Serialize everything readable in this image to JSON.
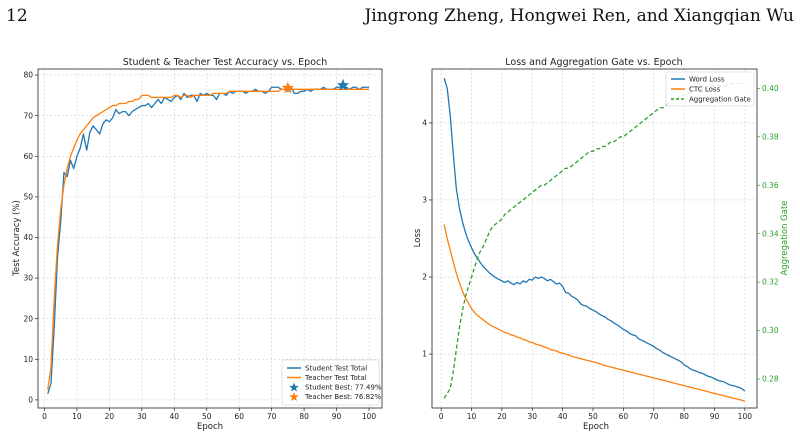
{
  "page": {
    "page_number": "12",
    "running_head": "Jingrong Zheng, Hongwei Ren, and Xiangqian Wu"
  },
  "chart_data": [
    {
      "type": "line",
      "title": "Student & Teacher Test Accuracy vs. Epoch",
      "xlabel": "Epoch",
      "ylabel": "Test Accuracy (%)",
      "xlim": [
        -2,
        104
      ],
      "ylim": [
        -2,
        81.5
      ],
      "xticks": [
        0,
        10,
        20,
        30,
        40,
        50,
        60,
        70,
        80,
        90,
        100
      ],
      "yticks": [
        0,
        10,
        20,
        30,
        40,
        50,
        60,
        70,
        80
      ],
      "grid": true,
      "legend_position": "lower-right",
      "series": [
        {
          "name": "Student Test Total",
          "color": "#1f77b4",
          "x": [
            1,
            2,
            3,
            4,
            5,
            6,
            7,
            8,
            9,
            10,
            11,
            12,
            13,
            14,
            15,
            16,
            17,
            18,
            19,
            20,
            21,
            22,
            23,
            24,
            25,
            26,
            27,
            28,
            29,
            30,
            31,
            32,
            33,
            34,
            35,
            36,
            37,
            38,
            39,
            40,
            41,
            42,
            43,
            44,
            45,
            46,
            47,
            48,
            49,
            50,
            51,
            52,
            53,
            54,
            55,
            56,
            57,
            58,
            59,
            60,
            61,
            62,
            63,
            64,
            65,
            66,
            67,
            68,
            69,
            70,
            71,
            72,
            73,
            74,
            75,
            76,
            77,
            78,
            79,
            80,
            81,
            82,
            83,
            84,
            85,
            86,
            87,
            88,
            89,
            90,
            91,
            92,
            93,
            94,
            95,
            96,
            97,
            98,
            99,
            100
          ],
          "y": [
            1.5,
            4,
            18,
            35,
            44,
            56,
            55,
            59,
            57,
            60,
            62,
            65.5,
            61.5,
            66,
            67.5,
            66.5,
            65.5,
            68,
            69,
            68.5,
            69.5,
            71.5,
            70.5,
            71,
            71,
            70,
            71,
            71.5,
            72,
            72.5,
            72.5,
            73,
            72,
            73,
            74,
            73,
            74.5,
            74,
            73.5,
            74.5,
            75,
            74,
            75.5,
            74.5,
            75,
            75,
            73.5,
            75.5,
            75,
            75.5,
            75,
            75,
            74,
            75.5,
            75.5,
            75,
            76,
            75.5,
            76,
            76,
            76,
            75.5,
            76,
            76,
            76.5,
            76,
            76,
            75.5,
            76,
            77,
            77,
            77,
            76.5,
            76.5,
            76,
            77,
            75.5,
            75.5,
            76,
            76,
            76.5,
            76,
            76.5,
            76.5,
            76.5,
            77,
            76.5,
            76.5,
            76.5,
            77,
            77,
            77.49,
            77,
            76.5,
            77,
            77,
            76.5,
            77,
            77,
            77
          ]
        },
        {
          "name": "Teacher Test Total",
          "color": "#ff7f0e",
          "x": [
            1,
            2,
            3,
            4,
            5,
            6,
            7,
            8,
            9,
            10,
            11,
            12,
            13,
            14,
            15,
            16,
            17,
            18,
            19,
            20,
            21,
            22,
            23,
            24,
            25,
            26,
            27,
            28,
            29,
            30,
            31,
            32,
            33,
            34,
            35,
            36,
            37,
            38,
            39,
            40,
            41,
            42,
            43,
            44,
            45,
            46,
            47,
            48,
            49,
            50,
            51,
            52,
            53,
            54,
            55,
            56,
            57,
            58,
            59,
            60,
            61,
            62,
            63,
            64,
            65,
            66,
            67,
            68,
            69,
            70,
            71,
            72,
            73,
            74,
            75,
            76,
            77,
            78,
            79,
            80,
            81,
            82,
            83,
            84,
            85,
            86,
            87,
            88,
            89,
            90,
            91,
            92,
            93,
            94,
            95,
            96,
            97,
            98,
            99,
            100
          ],
          "y": [
            2.5,
            8,
            25,
            38,
            47,
            53,
            57,
            60,
            62,
            64,
            65.5,
            66.5,
            67.5,
            68.5,
            69.5,
            70,
            70.5,
            71,
            71.5,
            72,
            72.5,
            72.5,
            73,
            73,
            73,
            73.5,
            73.5,
            74,
            74,
            75,
            75,
            75,
            74.5,
            74.5,
            74.5,
            74.5,
            74.5,
            74.5,
            74.5,
            75,
            75,
            74.5,
            75,
            75,
            74.5,
            75,
            75,
            75,
            75,
            75,
            75,
            75.5,
            75.5,
            75.5,
            75.5,
            75.5,
            76,
            76,
            76,
            76,
            76,
            76,
            76,
            76,
            76,
            76,
            76,
            76,
            76,
            76,
            76,
            76,
            76.5,
            76.5,
            76.82,
            76.5,
            76.5,
            76.5,
            76.5,
            76.5,
            76.5,
            76.5,
            76.5,
            76.5,
            76.5,
            76.5,
            76.5,
            76.5,
            76.5,
            76.5,
            76.5,
            76.5,
            76.5,
            76.5,
            76.5,
            76.5,
            76.5,
            76.5,
            76.5,
            76.5
          ]
        }
      ],
      "markers": [
        {
          "name": "Student Best: 77.49%",
          "x": 92,
          "y": 77.49,
          "color": "#1f77b4",
          "shape": "star"
        },
        {
          "name": "Teacher Best: 76.82%",
          "x": 75,
          "y": 76.82,
          "color": "#ff7f0e",
          "shape": "star"
        }
      ]
    },
    {
      "type": "line",
      "title": "Loss and Aggregation Gate vs. Epoch",
      "xlabel": "Epoch",
      "ylabel": "Loss",
      "y2label": "Aggregation Gate",
      "xlim": [
        -3,
        104
      ],
      "ylim": [
        0.3,
        4.7
      ],
      "y2lim": [
        0.268,
        0.408
      ],
      "xticks": [
        0,
        10,
        20,
        30,
        40,
        50,
        60,
        70,
        80,
        90,
        100
      ],
      "yticks": [
        1,
        2,
        3,
        4
      ],
      "y2ticks": [
        0.28,
        0.3,
        0.32,
        0.34,
        0.36,
        0.38,
        0.4
      ],
      "grid": true,
      "legend_position": "top-right",
      "series": [
        {
          "name": "Word Loss",
          "axis": "left",
          "color": "#1f77b4",
          "style": "solid",
          "x": [
            1,
            2,
            3,
            4,
            5,
            6,
            7,
            8,
            9,
            10,
            11,
            12,
            13,
            14,
            15,
            16,
            17,
            18,
            19,
            20,
            21,
            22,
            23,
            24,
            25,
            26,
            27,
            28,
            29,
            30,
            31,
            32,
            33,
            34,
            35,
            36,
            37,
            38,
            39,
            40,
            41,
            42,
            43,
            44,
            45,
            46,
            47,
            48,
            49,
            50,
            51,
            52,
            53,
            54,
            55,
            56,
            57,
            58,
            59,
            60,
            61,
            62,
            63,
            64,
            65,
            66,
            67,
            68,
            69,
            70,
            71,
            72,
            73,
            74,
            75,
            76,
            77,
            78,
            79,
            80,
            81,
            82,
            83,
            84,
            85,
            86,
            87,
            88,
            89,
            90,
            91,
            92,
            93,
            94,
            95,
            96,
            97,
            98,
            99,
            100
          ],
          "y": [
            4.58,
            4.45,
            4.1,
            3.6,
            3.15,
            2.9,
            2.72,
            2.58,
            2.47,
            2.38,
            2.3,
            2.24,
            2.18,
            2.13,
            2.09,
            2.05,
            2.02,
            1.99,
            1.97,
            1.95,
            1.93,
            1.95,
            1.92,
            1.9,
            1.93,
            1.91,
            1.95,
            1.93,
            1.97,
            1.96,
            2.0,
            1.98,
            2.0,
            1.98,
            1.95,
            1.97,
            1.94,
            1.91,
            1.92,
            1.88,
            1.8,
            1.79,
            1.75,
            1.73,
            1.7,
            1.65,
            1.63,
            1.62,
            1.59,
            1.57,
            1.55,
            1.52,
            1.5,
            1.48,
            1.45,
            1.43,
            1.4,
            1.38,
            1.35,
            1.32,
            1.3,
            1.27,
            1.25,
            1.24,
            1.2,
            1.18,
            1.16,
            1.14,
            1.12,
            1.1,
            1.07,
            1.05,
            1.02,
            1.0,
            0.98,
            0.96,
            0.94,
            0.92,
            0.9,
            0.86,
            0.84,
            0.81,
            0.79,
            0.78,
            0.76,
            0.75,
            0.73,
            0.71,
            0.7,
            0.68,
            0.66,
            0.65,
            0.64,
            0.62,
            0.6,
            0.59,
            0.58,
            0.57,
            0.55,
            0.52
          ]
        },
        {
          "name": "CTC Loss",
          "axis": "left",
          "color": "#ff7f0e",
          "style": "solid",
          "x": [
            1,
            2,
            3,
            4,
            5,
            6,
            7,
            8,
            9,
            10,
            11,
            12,
            13,
            14,
            15,
            16,
            17,
            18,
            19,
            20,
            21,
            22,
            23,
            24,
            25,
            26,
            27,
            28,
            29,
            30,
            31,
            32,
            33,
            34,
            35,
            36,
            37,
            38,
            39,
            40,
            41,
            42,
            43,
            44,
            45,
            46,
            47,
            48,
            49,
            50,
            51,
            52,
            53,
            54,
            55,
            56,
            57,
            58,
            59,
            60,
            61,
            62,
            63,
            64,
            65,
            66,
            67,
            68,
            69,
            70,
            71,
            72,
            73,
            74,
            75,
            76,
            77,
            78,
            79,
            80,
            81,
            82,
            83,
            84,
            85,
            86,
            87,
            88,
            89,
            90,
            91,
            92,
            93,
            94,
            95,
            96,
            97,
            98,
            99,
            100
          ],
          "y": [
            2.68,
            2.5,
            2.35,
            2.2,
            2.05,
            1.93,
            1.82,
            1.73,
            1.66,
            1.59,
            1.54,
            1.5,
            1.47,
            1.44,
            1.41,
            1.38,
            1.36,
            1.34,
            1.32,
            1.3,
            1.28,
            1.27,
            1.25,
            1.24,
            1.22,
            1.21,
            1.19,
            1.18,
            1.16,
            1.15,
            1.13,
            1.12,
            1.11,
            1.09,
            1.08,
            1.06,
            1.05,
            1.04,
            1.02,
            1.01,
            1.0,
            0.99,
            0.97,
            0.96,
            0.95,
            0.94,
            0.93,
            0.92,
            0.91,
            0.9,
            0.89,
            0.88,
            0.86,
            0.85,
            0.84,
            0.83,
            0.82,
            0.81,
            0.8,
            0.79,
            0.78,
            0.77,
            0.76,
            0.75,
            0.74,
            0.73,
            0.72,
            0.71,
            0.7,
            0.69,
            0.68,
            0.67,
            0.66,
            0.65,
            0.64,
            0.63,
            0.62,
            0.61,
            0.6,
            0.59,
            0.58,
            0.57,
            0.56,
            0.55,
            0.54,
            0.53,
            0.52,
            0.51,
            0.5,
            0.49,
            0.48,
            0.47,
            0.46,
            0.45,
            0.44,
            0.43,
            0.42,
            0.41,
            0.4,
            0.39
          ]
        },
        {
          "name": "Aggregation Gate",
          "axis": "right",
          "color": "#2ca02c",
          "style": "dashed",
          "x": [
            1,
            2,
            3,
            4,
            5,
            6,
            7,
            8,
            9,
            10,
            11,
            12,
            13,
            14,
            15,
            16,
            17,
            18,
            19,
            20,
            21,
            22,
            23,
            24,
            25,
            26,
            27,
            28,
            29,
            30,
            31,
            32,
            33,
            34,
            35,
            36,
            37,
            38,
            39,
            40,
            41,
            42,
            43,
            44,
            45,
            46,
            47,
            48,
            49,
            50,
            51,
            52,
            53,
            54,
            55,
            56,
            57,
            58,
            59,
            60,
            61,
            62,
            63,
            64,
            65,
            66,
            67,
            68,
            69,
            70,
            71,
            72,
            73,
            74,
            75,
            76,
            77,
            78,
            79,
            80,
            81,
            82,
            83,
            84,
            85,
            86,
            87,
            88,
            89,
            90,
            91,
            92,
            93,
            94,
            95,
            96,
            97,
            98,
            99,
            100
          ],
          "y": [
            0.272,
            0.274,
            0.276,
            0.283,
            0.292,
            0.301,
            0.308,
            0.314,
            0.318,
            0.322,
            0.326,
            0.33,
            0.333,
            0.335,
            0.338,
            0.341,
            0.343,
            0.344,
            0.345,
            0.346,
            0.348,
            0.349,
            0.35,
            0.351,
            0.352,
            0.353,
            0.354,
            0.355,
            0.356,
            0.357,
            0.358,
            0.359,
            0.36,
            0.36,
            0.361,
            0.362,
            0.363,
            0.364,
            0.365,
            0.366,
            0.367,
            0.367,
            0.368,
            0.369,
            0.37,
            0.371,
            0.372,
            0.373,
            0.374,
            0.374,
            0.375,
            0.375,
            0.376,
            0.376,
            0.377,
            0.378,
            0.378,
            0.379,
            0.38,
            0.38,
            0.381,
            0.382,
            0.383,
            0.384,
            0.385,
            0.386,
            0.387,
            0.388,
            0.389,
            0.39,
            0.391,
            0.392,
            0.392,
            0.393,
            0.394,
            0.395,
            0.396,
            0.396,
            0.397,
            0.397,
            0.398,
            0.398,
            0.399,
            0.399,
            0.399,
            0.4,
            0.4,
            0.4,
            0.401,
            0.401,
            0.401,
            0.401,
            0.401,
            0.401,
            0.402,
            0.402,
            0.402,
            0.402,
            0.402,
            0.402
          ]
        }
      ]
    }
  ]
}
